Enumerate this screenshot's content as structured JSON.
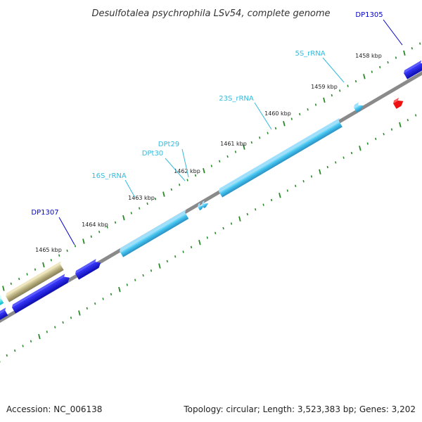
{
  "header": {
    "title": "Desulfotalea psychrophila LSv54, complete genome"
  },
  "footer": {
    "accession": "Accession: NC_006138",
    "summary": "Topology: circular; Length: 3,523,383 bp; Genes: 3,202"
  },
  "ticks": [
    "1458 kbp",
    "1459 kbp",
    "1460 kbp",
    "1461 kbp",
    "1462 kbp",
    "1463 kbp",
    "1464 kbp",
    "1465 kbp"
  ],
  "features": [
    {
      "label": "DP1305",
      "color": "#0000cc"
    },
    {
      "label": "5S_rRNA",
      "color": "#33bbdd"
    },
    {
      "label": "23S_rRNA",
      "color": "#33bbdd"
    },
    {
      "label": "DPt29",
      "color": "#33bbdd"
    },
    {
      "label": "DPt30",
      "color": "#33bbdd"
    },
    {
      "label": "16S_rRNA",
      "color": "#33bbdd"
    },
    {
      "label": "DP1307",
      "color": "#0000cc"
    }
  ],
  "colors": {
    "backbone": "#888888",
    "gene_cds": "#1515dd",
    "gene_rrna": "#44bbee",
    "gene_trna": "#44bbee",
    "gene_other": "#aaa070",
    "gene_cyan": "#00e5ee",
    "gene_red": "#ee0000",
    "tick": "#2a8a2a"
  }
}
